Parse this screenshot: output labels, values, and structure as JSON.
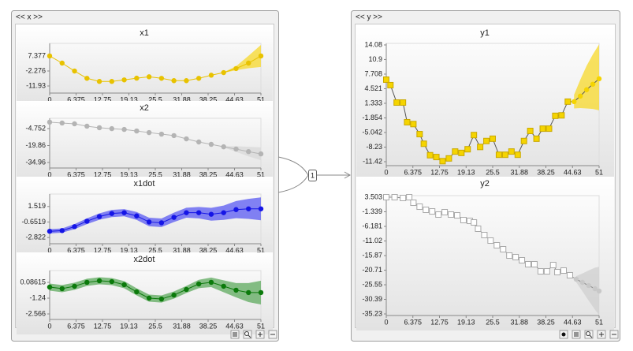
{
  "panels": [
    {
      "title": "<< x >>"
    },
    {
      "title": "<< y >>"
    }
  ],
  "connector_label": "1",
  "chart_data": [
    {
      "type": "line",
      "title": "x1",
      "marker": "circle",
      "color": "#e8c200",
      "line_color": "#e8c200",
      "band_color": "#f7d82a",
      "x": [
        0,
        3,
        6,
        9,
        12,
        15,
        18,
        21,
        24,
        27,
        30,
        33,
        36,
        39,
        42,
        45,
        48,
        51
      ],
      "values": [
        7.4,
        2.8,
        -2.3,
        -7,
        -9,
        -9,
        -8,
        -6.9,
        -6,
        -7,
        -8.5,
        -8.5,
        -7,
        -5,
        -3.3,
        -0.7,
        2.8,
        7.4
      ],
      "band_upper": [
        null,
        null,
        null,
        null,
        null,
        null,
        null,
        null,
        null,
        null,
        null,
        null,
        null,
        null,
        -3.1,
        0.8,
        7.5,
        14.5
      ],
      "band_lower": [
        null,
        null,
        null,
        null,
        null,
        null,
        null,
        null,
        null,
        null,
        null,
        null,
        null,
        null,
        -3.5,
        -1.8,
        -0.5,
        0.3
      ],
      "xlim": [
        0,
        51
      ],
      "xticks": [
        0,
        6.375,
        12.75,
        19.13,
        25.5,
        31.88,
        38.25,
        44.63,
        51
      ],
      "ylim": [
        -16.5,
        15.5
      ],
      "yticks": [
        7.377,
        -2.276,
        -11.93
      ]
    },
    {
      "type": "line",
      "title": "x2",
      "marker": "circle",
      "color": "#b4b4b4",
      "line_color": "#b4b4b4",
      "band_color": "#d8d8d8",
      "x": [
        0,
        3,
        6,
        9,
        12,
        15,
        18,
        21,
        24,
        27,
        30,
        33,
        36,
        39,
        42,
        45,
        48,
        51
      ],
      "values": [
        1,
        0.2,
        -0.5,
        -2.6,
        -4,
        -4.8,
        -5.5,
        -6.9,
        -8.3,
        -9.7,
        -11,
        -13.9,
        -16.7,
        -18.8,
        -21,
        -23,
        -25.3,
        -27.3
      ],
      "band_upper": [
        null,
        null,
        null,
        null,
        null,
        null,
        null,
        null,
        null,
        null,
        null,
        null,
        null,
        null,
        -20.5,
        -20.5,
        -21,
        -21.5
      ],
      "band_lower": [
        null,
        null,
        null,
        null,
        null,
        null,
        null,
        null,
        null,
        null,
        null,
        null,
        null,
        null,
        -21.5,
        -25.5,
        -29.5,
        -33
      ],
      "xlim": [
        0,
        51
      ],
      "xticks": [
        0,
        6.375,
        12.75,
        19.13,
        25.5,
        31.88,
        38.25,
        44.63,
        51
      ],
      "ylim": [
        -39.9,
        4.4
      ],
      "yticks": [
        -4.752,
        -19.86,
        -34.96
      ]
    },
    {
      "type": "line",
      "title": "x1dot",
      "marker": "circle",
      "color": "#1515e6",
      "line_color": "#1515e6",
      "band_color": "#5a5af2",
      "x": [
        0,
        3,
        6,
        9,
        12,
        15,
        18,
        21,
        24,
        27,
        30,
        33,
        36,
        39,
        42,
        45,
        48,
        51
      ],
      "values": [
        -1.95,
        -1.85,
        -1.3,
        -0.54,
        0.11,
        0.54,
        0.65,
        0.2,
        -0.65,
        -0.76,
        0,
        0.65,
        0.65,
        0.43,
        0.65,
        1.08,
        1.19,
        1.19
      ],
      "band_upper": [
        -1.65,
        -1.55,
        -0.95,
        -0.14,
        0.56,
        1.04,
        1.15,
        0.75,
        -0.05,
        -0.16,
        0.65,
        1.35,
        1.45,
        1.33,
        1.65,
        2.28,
        2.59,
        2.79
      ],
      "band_lower": [
        -2.25,
        -2.15,
        -1.65,
        -0.94,
        -0.34,
        0.04,
        0.15,
        -0.35,
        -1.25,
        -1.36,
        -0.65,
        -0.05,
        -0.15,
        -0.47,
        -0.35,
        -0.12,
        -0.21,
        -0.41
      ],
      "xlim": [
        0,
        51
      ],
      "xticks": [
        0,
        6.375,
        12.75,
        19.13,
        25.5,
        31.88,
        38.25,
        44.63,
        51
      ],
      "ylim": [
        -3.69,
        3.26
      ],
      "yticks": [
        1.519,
        -0.6519,
        -2.822
      ]
    },
    {
      "type": "line",
      "title": "x2dot",
      "marker": "circle",
      "color": "#0b7a0b",
      "line_color": "#0b7a0b",
      "band_color": "#5eaa5e",
      "x": [
        0,
        3,
        6,
        9,
        12,
        15,
        18,
        21,
        24,
        27,
        30,
        33,
        36,
        39,
        42,
        45,
        48,
        51
      ],
      "values": [
        -0.31,
        -0.44,
        -0.24,
        0.09,
        0.22,
        0.15,
        -0.11,
        -0.71,
        -1.24,
        -1.31,
        -0.98,
        -0.51,
        -0.05,
        0.09,
        -0.24,
        -0.57,
        -0.77,
        -0.77
      ],
      "band_upper": [
        -0.01,
        -0.14,
        0.06,
        0.39,
        0.52,
        0.45,
        0.19,
        -0.41,
        -0.94,
        -1.01,
        -0.68,
        -0.21,
        0.3,
        0.49,
        0.26,
        0.03,
        0.03,
        0.23
      ],
      "band_lower": [
        -0.61,
        -0.74,
        -0.54,
        -0.21,
        -0.08,
        -0.15,
        -0.41,
        -1.01,
        -1.54,
        -1.61,
        -1.28,
        -0.81,
        -0.4,
        -0.31,
        -0.74,
        -1.17,
        -1.57,
        -1.77
      ],
      "xlim": [
        0,
        51
      ],
      "xticks": [
        0,
        6.375,
        12.75,
        19.13,
        25.5,
        31.88,
        38.25,
        44.63,
        51
      ],
      "ylim": [
        -3.03,
        1.08
      ],
      "yticks": [
        0.08615,
        -1.24,
        -2.566
      ]
    },
    {
      "type": "line",
      "title": "y1",
      "marker": "square",
      "color": "#f5d400",
      "line_color": "#555555",
      "band_color": "#f7d82a",
      "x": [
        0,
        1,
        2.5,
        4,
        5,
        6.5,
        8,
        9,
        10.5,
        12,
        13.5,
        15,
        16.5,
        18,
        19.5,
        21,
        22.5,
        24,
        25.5,
        27,
        28.5,
        30,
        31.5,
        33,
        34.5,
        36,
        37.5,
        39,
        40.5,
        42,
        43.5,
        45,
        46.5,
        48,
        49.5,
        51
      ],
      "values": [
        6.5,
        5.3,
        1.5,
        1.5,
        -2.8,
        -3.2,
        -5.4,
        -7.5,
        -10,
        -10.4,
        -11.3,
        -10.7,
        -9.2,
        -9.5,
        -8.7,
        -5.6,
        -8.2,
        -6.9,
        -6.4,
        -9.9,
        -9.9,
        -9.2,
        -9.9,
        -6.9,
        -4.7,
        -6.4,
        -4.2,
        -4.2,
        -1.4,
        -1.3,
        1.7,
        1.7,
        2.9,
        4.3,
        5.5,
        6.7
      ],
      "band_upper": [
        null,
        null,
        null,
        null,
        null,
        null,
        null,
        null,
        null,
        null,
        null,
        null,
        null,
        null,
        null,
        null,
        null,
        null,
        null,
        null,
        null,
        null,
        null,
        null,
        null,
        null,
        null,
        null,
        null,
        null,
        null,
        3.2,
        6.5,
        9.5,
        12,
        14.2
      ],
      "band_lower": [
        null,
        null,
        null,
        null,
        null,
        null,
        null,
        null,
        null,
        null,
        null,
        null,
        null,
        null,
        null,
        null,
        null,
        null,
        null,
        null,
        null,
        null,
        null,
        null,
        null,
        null,
        null,
        null,
        null,
        null,
        null,
        0.2,
        0.3,
        0.2,
        0.1,
        -0.2
      ],
      "xlim": [
        0,
        51
      ],
      "xticks": [
        0,
        6.375,
        12.75,
        19.13,
        25.5,
        31.88,
        38.25,
        44.63,
        51
      ],
      "ylim": [
        -12.28,
        14.42
      ],
      "yticks": [
        14.08,
        10.9,
        7.708,
        4.521,
        1.333,
        -1.854,
        -5.042,
        -8.23,
        -11.42
      ]
    },
    {
      "type": "line",
      "title": "y2",
      "marker": "square",
      "color": "#ffffff",
      "line_color": "#888888",
      "band_color": "#cfcfcf",
      "x": [
        0,
        2,
        4,
        5.5,
        6.5,
        8,
        9.5,
        11,
        12.5,
        14,
        15.5,
        17,
        18.5,
        20,
        21,
        22,
        23.5,
        25,
        26.5,
        28,
        29.5,
        31,
        32.5,
        34,
        35.5,
        37,
        38.5,
        40,
        41,
        42.5,
        44,
        45.5,
        47,
        48.5,
        50,
        51
      ],
      "values": [
        3.5,
        3.5,
        3.24,
        3.5,
        1.67,
        0.36,
        -0.68,
        -1.21,
        -2.25,
        -1.47,
        -2.25,
        -2.52,
        -4.09,
        -4.35,
        -4.87,
        -6.96,
        -9.06,
        -10.89,
        -12.46,
        -13.77,
        -15.86,
        -16.39,
        -17.43,
        -18.74,
        -18.74,
        -21.1,
        -21.1,
        -19,
        -21.36,
        -20.83,
        -22.4,
        -23.71,
        -24.76,
        -25.81,
        -26.85,
        -27.64
      ],
      "band_upper": [
        null,
        null,
        null,
        null,
        null,
        null,
        null,
        null,
        null,
        null,
        null,
        null,
        null,
        null,
        null,
        null,
        null,
        null,
        null,
        null,
        null,
        null,
        null,
        null,
        null,
        null,
        null,
        null,
        null,
        null,
        null,
        -22.7,
        -21.8,
        -20.8,
        -19.9,
        -19.6
      ],
      "band_lower": [
        null,
        null,
        null,
        null,
        null,
        null,
        null,
        null,
        null,
        null,
        null,
        null,
        null,
        null,
        null,
        null,
        null,
        null,
        null,
        null,
        null,
        null,
        null,
        null,
        null,
        null,
        null,
        null,
        null,
        null,
        null,
        -24.7,
        -27.7,
        -30.8,
        -33.8,
        -35.6
      ],
      "xlim": [
        0,
        51
      ],
      "xticks": [
        0,
        6.375,
        12.75,
        19.13,
        25.5,
        31.88,
        38.25,
        44.63,
        51
      ],
      "ylim": [
        -35.75,
        4.03
      ],
      "yticks": [
        3.503,
        -1.339,
        -6.181,
        -11.02,
        -15.87,
        -20.71,
        -25.55,
        -30.39,
        -35.23
      ]
    }
  ]
}
